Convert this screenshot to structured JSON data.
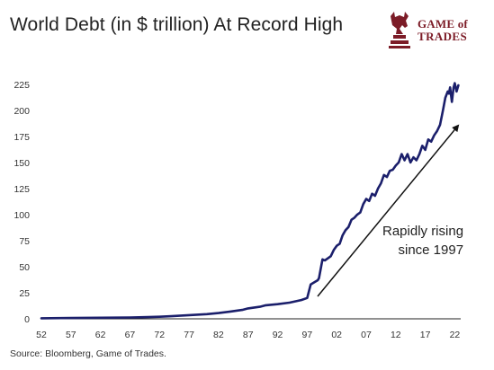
{
  "title": "World Debt (in $ trillion) At Record High",
  "logo": {
    "line1": "GAME of",
    "line2": "TRADES",
    "color": "#7c1c27"
  },
  "source": "Source: Bloomberg, Game of Trades.",
  "annotation": {
    "line1": "Rapidly rising",
    "line2": "since 1997"
  },
  "colors": {
    "line": "#1b1f6b",
    "axis": "#222222",
    "arrow": "#111111"
  },
  "chart_data": {
    "type": "line",
    "title": "World Debt (in $ trillion) At Record High",
    "xlabel": "",
    "ylabel": "",
    "xlim": [
      1952,
      2023
    ],
    "ylim": [
      0,
      230
    ],
    "yticks": [
      0,
      25,
      50,
      75,
      100,
      125,
      150,
      175,
      200,
      225
    ],
    "xtick_labels": [
      "52",
      "57",
      "62",
      "67",
      "72",
      "77",
      "82",
      "87",
      "92",
      "97",
      "02",
      "07",
      "12",
      "17",
      "22"
    ],
    "xticks": [
      1952,
      1957,
      1962,
      1967,
      1972,
      1977,
      1982,
      1987,
      1992,
      1997,
      2002,
      2007,
      2012,
      2017,
      2022
    ],
    "grid": false,
    "series": [
      {
        "x": [
          1952,
          1957,
          1962,
          1967,
          1970,
          1972,
          1974,
          1977,
          1980,
          1982,
          1984,
          1986,
          1987,
          1989,
          1990,
          1992,
          1994,
          1996,
          1997,
          1997.6,
          1998.2,
          1998.8,
          1999,
          1999.6,
          2000,
          2000.5,
          2001,
          2001.5,
          2002,
          2002.5,
          2003,
          2003.5,
          2004,
          2004.5,
          2005,
          2005.5,
          2006,
          2006.5,
          2007,
          2007.5,
          2008,
          2008.5,
          2009,
          2009.5,
          2010,
          2010.5,
          2011,
          2011.5,
          2012,
          2012.5,
          2013,
          2013.5,
          2014,
          2014.5,
          2015,
          2015.5,
          2016,
          2016.5,
          2017,
          2017.5,
          2018,
          2018.5,
          2019,
          2019.5,
          2020,
          2020.4,
          2020.8,
          2021,
          2021.2,
          2021.5,
          2021.8,
          2022,
          2022.3,
          2022.6
        ],
        "y": [
          0.5,
          0.8,
          1.0,
          1.3,
          1.6,
          2.0,
          2.5,
          3.5,
          4.5,
          5.5,
          7.0,
          8.5,
          10.0,
          11.5,
          13.0,
          14.0,
          15.5,
          18.0,
          20.0,
          33.0,
          35.0,
          37.0,
          39.0,
          57.0,
          56.0,
          58.0,
          60.0,
          66.0,
          70.0,
          72.0,
          80.0,
          85.0,
          88.0,
          95.0,
          97.0,
          100.0,
          102.0,
          110.0,
          115.0,
          113.0,
          120.0,
          118.0,
          125.0,
          130.0,
          138.0,
          136.0,
          142.0,
          143.0,
          147.0,
          150.0,
          158.0,
          152.0,
          158.0,
          150.0,
          155.0,
          152.0,
          158.0,
          166.0,
          162.0,
          172.0,
          170.0,
          176.0,
          180.0,
          186.0,
          200.0,
          212.0,
          218.0,
          216.0,
          222.0,
          208.0,
          222.0,
          226.0,
          218.0,
          224.0
        ]
      }
    ]
  }
}
